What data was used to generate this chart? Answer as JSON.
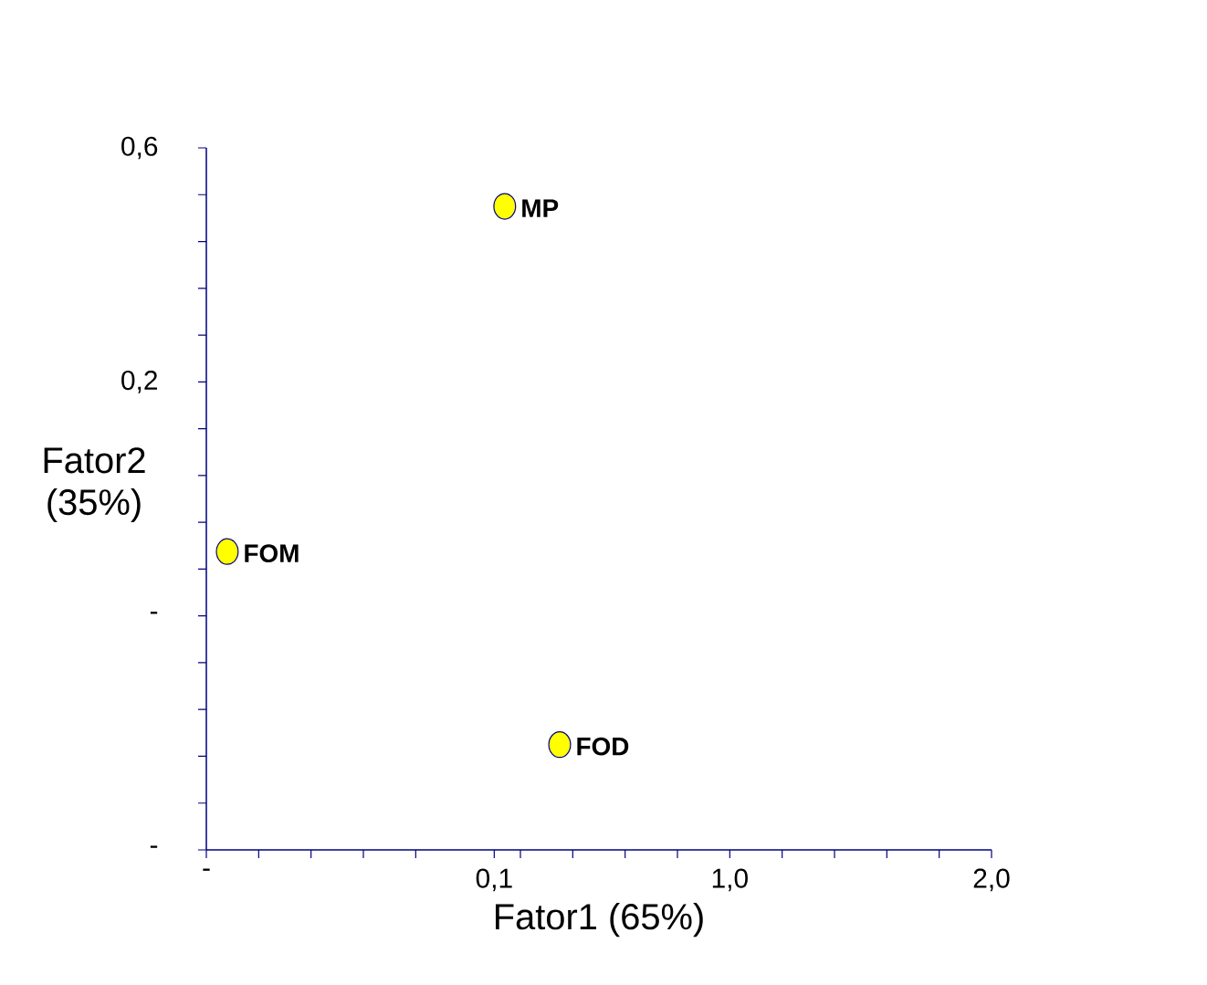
{
  "chart_data": {
    "type": "scatter",
    "xlabel": "Fator1 (65%)",
    "ylabel": "Fator2 (35%)",
    "series": [
      {
        "color": "#ffff00",
        "x": [
          0.14,
          -0.92,
          0.35
        ],
        "values": [
          0.5,
          -0.09,
          -0.42
        ]
      }
    ],
    "marker": "circle",
    "annotations": [
      {
        "text": "MP",
        "x": 0.14,
        "y": 0.5
      },
      {
        "text": "FOM",
        "x": -0.92,
        "y": -0.09
      },
      {
        "text": "FOD",
        "x": 0.35,
        "y": -0.42
      }
    ],
    "xlim": [
      -1,
      2
    ],
    "ylim": [
      -0.6,
      0.6
    ],
    "xticks": [
      {
        "value": -1,
        "label": "-"
      },
      {
        "value": -0.8,
        "label": null
      },
      {
        "value": -0.6,
        "label": null
      },
      {
        "value": -0.4,
        "label": null
      },
      {
        "value": -0.2,
        "label": null
      },
      {
        "value": 0.1,
        "label": "0,1"
      },
      {
        "value": 0.2,
        "label": null
      },
      {
        "value": 0.4,
        "label": null
      },
      {
        "value": 0.6,
        "label": null
      },
      {
        "value": 0.8,
        "label": null
      },
      {
        "value": 1,
        "label": "1,0"
      },
      {
        "value": 1.2,
        "label": null
      },
      {
        "value": 1.4,
        "label": null
      },
      {
        "value": 1.6,
        "label": null
      },
      {
        "value": 1.8,
        "label": null
      },
      {
        "value": 2,
        "label": "2,0"
      }
    ],
    "yticks": [
      {
        "value": 0.6,
        "label": "0,6"
      },
      {
        "value": 0.52,
        "label": null
      },
      {
        "value": 0.44,
        "label": null
      },
      {
        "value": 0.36,
        "label": null
      },
      {
        "value": 0.28,
        "label": null
      },
      {
        "value": 0.2,
        "label": "0,2"
      },
      {
        "value": 0.12,
        "label": null
      },
      {
        "value": 0.04,
        "label": null
      },
      {
        "value": -0.04,
        "label": null
      },
      {
        "value": -0.12,
        "label": null
      },
      {
        "value": -0.2,
        "label": "-"
      },
      {
        "value": -0.28,
        "label": null
      },
      {
        "value": -0.36,
        "label": null
      },
      {
        "value": -0.44,
        "label": null
      },
      {
        "value": -0.52,
        "label": null
      },
      {
        "value": -0.6,
        "label": "-"
      }
    ]
  }
}
